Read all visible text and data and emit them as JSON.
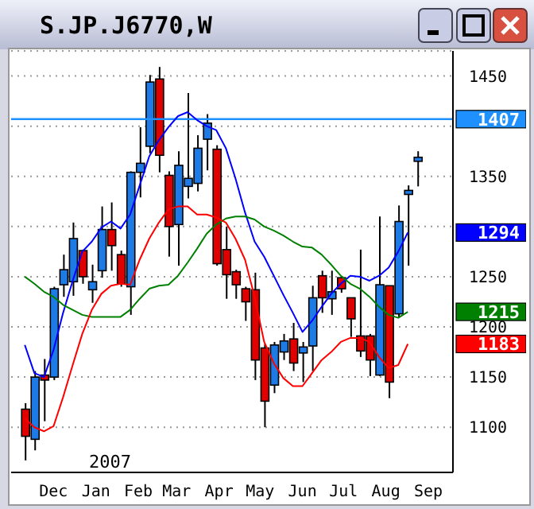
{
  "chart_data": {
    "type": "candlestick",
    "title": "S.JP.J6770,W",
    "x": [
      "2006-11-24",
      "2006-12-01",
      "2006-12-08",
      "2006-12-15",
      "2006-12-22",
      "2006-12-29",
      "2007-01-05",
      "2007-01-12",
      "2007-01-19",
      "2007-01-26",
      "2007-02-02",
      "2007-02-09",
      "2007-02-16",
      "2007-02-23",
      "2007-03-02",
      "2007-03-09",
      "2007-03-16",
      "2007-03-23",
      "2007-03-30",
      "2007-04-06",
      "2007-04-13",
      "2007-04-20",
      "2007-04-27",
      "2007-05-04",
      "2007-05-11",
      "2007-05-18",
      "2007-05-25",
      "2007-06-01",
      "2007-06-08",
      "2007-06-15",
      "2007-06-22",
      "2007-06-29",
      "2007-07-06",
      "2007-07-13",
      "2007-07-20",
      "2007-07-27",
      "2007-08-03",
      "2007-08-10",
      "2007-08-17",
      "2007-08-24",
      "2007-08-31",
      "2007-09-07"
    ],
    "ohlc": [
      [
        1118,
        1124,
        1067,
        1091
      ],
      [
        1088,
        1156,
        1077,
        1150
      ],
      [
        1152,
        1168,
        1106,
        1147
      ],
      [
        1150,
        1240,
        1147,
        1238
      ],
      [
        1242,
        1272,
        1230,
        1257
      ],
      [
        1245,
        1304,
        1231,
        1288
      ],
      [
        1276,
        1277,
        1243,
        1250
      ],
      [
        1237,
        1262,
        1224,
        1245
      ],
      [
        1256,
        1320,
        1249,
        1297
      ],
      [
        1297,
        1324,
        1256,
        1281
      ],
      [
        1272,
        1276,
        1240,
        1243
      ],
      [
        1240,
        1355,
        1212,
        1354
      ],
      [
        1354,
        1399,
        1329,
        1363
      ],
      [
        1380,
        1451,
        1373,
        1444
      ],
      [
        1447,
        1459,
        1354,
        1371
      ],
      [
        1351,
        1355,
        1270,
        1300
      ],
      [
        1302,
        1375,
        1261,
        1361
      ],
      [
        1340,
        1433,
        1328,
        1348
      ],
      [
        1343,
        1391,
        1335,
        1378
      ],
      [
        1387,
        1412,
        1356,
        1403
      ],
      [
        1377,
        1381,
        1261,
        1263
      ],
      [
        1277,
        1300,
        1228,
        1252
      ],
      [
        1255,
        1257,
        1228,
        1242
      ],
      [
        1238,
        1240,
        1206,
        1225
      ],
      [
        1237,
        1254,
        1147,
        1167
      ],
      [
        1179,
        1183,
        1100,
        1126
      ],
      [
        1142,
        1185,
        1134,
        1182
      ],
      [
        1175,
        1193,
        1167,
        1186
      ],
      [
        1188,
        1204,
        1156,
        1164
      ],
      [
        1174,
        1185,
        1145,
        1180
      ],
      [
        1181,
        1241,
        1156,
        1229
      ],
      [
        1251,
        1256,
        1214,
        1229
      ],
      [
        1228,
        1256,
        1212,
        1235
      ],
      [
        1249,
        1250,
        1234,
        1238
      ],
      [
        1229,
        1229,
        1190,
        1208
      ],
      [
        1191,
        1277,
        1170,
        1176
      ],
      [
        1191,
        1193,
        1151,
        1167
      ],
      [
        1152,
        1310,
        1151,
        1242
      ],
      [
        1241,
        1241,
        1129,
        1145
      ],
      [
        1213,
        1321,
        1209,
        1305
      ],
      [
        1332,
        1341,
        1261,
        1336
      ],
      [
        1365,
        1375,
        1340,
        1369
      ]
    ],
    "colors": [
      "#e00000",
      "#1e7be6",
      "#e00000",
      "#1e7be6",
      "#1e7be6",
      "#1e7be6",
      "#e00000",
      "#1e7be6",
      "#1e7be6",
      "#e00000",
      "#e00000",
      "#1e7be6",
      "#1e7be6",
      "#1e7be6",
      "#e00000",
      "#e00000",
      "#1e7be6",
      "#1e7be6",
      "#1e7be6",
      "#1e7be6",
      "#e00000",
      "#e00000",
      "#e00000",
      "#e00000",
      "#e00000",
      "#e00000",
      "#1e7be6",
      "#1e7be6",
      "#e00000",
      "#1e7be6",
      "#1e7be6",
      "#e00000",
      "#1e7be6",
      "#e00000",
      "#e00000",
      "#e00000",
      "#e00000",
      "#1e7be6",
      "#e00000",
      "#1e7be6",
      "#1e7be6",
      "#1e7be6"
    ],
    "series": [
      {
        "type": "line",
        "color": "#0000ff",
        "values": [
          1182,
          1154,
          1150,
          1177,
          1214,
          1246,
          1275,
          1285,
          1299,
          1305,
          1298,
          1312,
          1341,
          1370,
          1386,
          1399,
          1410,
          1414,
          1406,
          1400,
          1396,
          1378,
          1348,
          1314,
          1285,
          1270,
          1251,
          1232,
          1214,
          1195,
          1206,
          1220,
          1233,
          1243,
          1251,
          1250,
          1246,
          1251,
          1259,
          1275,
          1294,
          null
        ]
      },
      {
        "type": "line",
        "color": "#008000",
        "values": [
          1250,
          1243,
          1235,
          1230,
          1222,
          1217,
          1212,
          1210,
          1210,
          1210,
          1210,
          1217,
          1228,
          1238,
          1241,
          1242,
          1251,
          1264,
          1278,
          1293,
          1302,
          1308,
          1310,
          1310,
          1307,
          1300,
          1296,
          1291,
          1285,
          1280,
          1279,
          1272,
          1262,
          1251,
          1243,
          1238,
          1230,
          1220,
          1212,
          1209,
          1215,
          null
        ]
      },
      {
        "type": "line",
        "color": "#ff0000",
        "values": [
          1109,
          1100,
          1096,
          1101,
          1130,
          1162,
          1193,
          1217,
          1233,
          1241,
          1243,
          1242,
          1267,
          1288,
          1304,
          1317,
          1320,
          1320,
          1312,
          1312,
          1309,
          1304,
          1288,
          1267,
          1230,
          1185,
          1164,
          1149,
          1141,
          1141,
          1154,
          1167,
          1175,
          1185,
          1189,
          1189,
          1185,
          1170,
          1159,
          1162,
          1183,
          null
        ]
      }
    ],
    "xlim": [
      "2006-11-14",
      "2007-10-03"
    ],
    "xticks": [
      {
        "value": "2006-12-15",
        "label": "Dec"
      },
      {
        "value": "2007-01-15",
        "label": "Jan"
      },
      {
        "value": "2007-02-15",
        "label": "Feb"
      },
      {
        "value": "2007-03-15",
        "label": "Mar"
      },
      {
        "value": "2007-04-15",
        "label": "Apr"
      },
      {
        "value": "2007-05-15",
        "label": "May"
      },
      {
        "value": "2007-06-15",
        "label": "Jun"
      },
      {
        "value": "2007-07-15",
        "label": "Jul"
      },
      {
        "value": "2007-08-15",
        "label": "Aug"
      },
      {
        "value": "2007-09-15",
        "label": "Sep"
      }
    ],
    "ylim": [
      1055,
      1475
    ],
    "yticks": [
      1100,
      1150,
      1200,
      1250,
      {
        "value": 1300,
        "label": null
      },
      1350,
      {
        "value": 1400,
        "label": null
      },
      1450
    ],
    "ref_lines": [
      {
        "axis": "y",
        "value": 1407,
        "label": "1407",
        "color": "#1e90ff"
      }
    ],
    "annotations": [
      "2007",
      "1294",
      "1215",
      "1183"
    ],
    "grid": "y"
  }
}
